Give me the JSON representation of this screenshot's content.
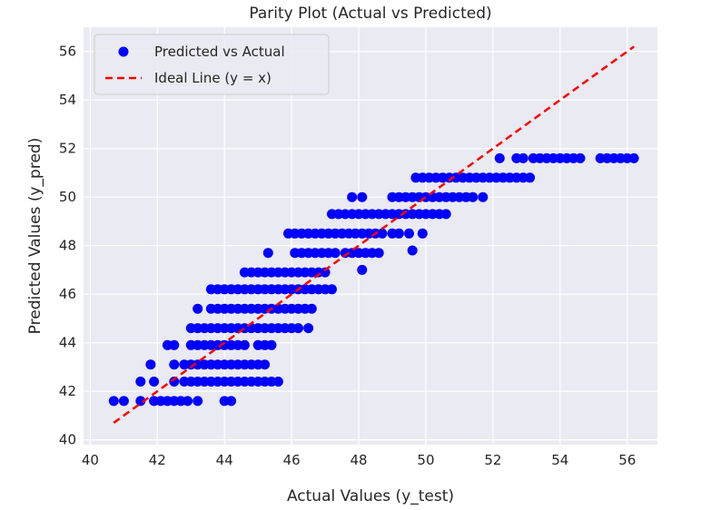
{
  "chart_data": {
    "type": "scatter",
    "title": "Parity Plot (Actual vs Predicted)",
    "xlabel": "Actual Values (y_test)",
    "ylabel": "Predicted Values (y_pred)",
    "xlim": [
      39.8,
      56.9
    ],
    "ylim": [
      39.8,
      57.0
    ],
    "xticks": [
      40,
      42,
      44,
      46,
      48,
      50,
      52,
      54,
      56
    ],
    "yticks": [
      40,
      42,
      44,
      46,
      48,
      50,
      52,
      54,
      56
    ],
    "grid": true,
    "legend": {
      "position": "top-left",
      "entries": [
        {
          "label": "Predicted vs Actual",
          "marker": "circle",
          "color": "#0000ff"
        },
        {
          "label": "Ideal Line (y = x)",
          "marker": "dashed-line",
          "color": "#ff0000"
        }
      ]
    },
    "colors": {
      "background": "#eaeaf2",
      "grid": "#ffffff",
      "points": "#0000ff",
      "ideal_line": "#ff0000"
    },
    "ideal_line": {
      "x": [
        40.7,
        56.2
      ],
      "y": [
        40.7,
        56.2
      ]
    },
    "series": [
      {
        "name": "Predicted vs Actual",
        "rows": [
          {
            "y": 41.6,
            "x": [
              40.7,
              41.0,
              41.5,
              41.9,
              42.1,
              42.3,
              42.5,
              42.7,
              42.9,
              43.2,
              44.0,
              44.2
            ]
          },
          {
            "y": 42.4,
            "x": [
              41.5,
              41.9,
              42.5,
              42.8,
              43.0,
              43.2,
              43.4,
              43.6,
              43.8,
              44.0,
              44.2,
              44.4,
              44.6,
              44.8,
              45.0,
              45.2,
              45.4,
              45.6
            ]
          },
          {
            "y": 43.1,
            "x": [
              41.8,
              42.5,
              42.8,
              43.0,
              43.2,
              43.4,
              43.6,
              43.8,
              44.0,
              44.2,
              44.4,
              44.6,
              44.8,
              45.0,
              45.2
            ]
          },
          {
            "y": 43.9,
            "x": [
              42.3,
              42.5,
              43.0,
              43.2,
              43.4,
              43.6,
              43.8,
              44.0,
              44.2,
              44.4,
              44.6,
              45.0,
              45.2,
              45.4
            ]
          },
          {
            "y": 44.6,
            "x": [
              43.0,
              43.2,
              43.4,
              43.6,
              43.8,
              44.0,
              44.2,
              44.4,
              44.6,
              44.8,
              45.0,
              45.2,
              45.4,
              45.6,
              45.8,
              46.0,
              46.2,
              46.5
            ]
          },
          {
            "y": 45.4,
            "x": [
              43.2,
              43.6,
              43.8,
              44.0,
              44.2,
              44.4,
              44.6,
              44.8,
              45.0,
              45.2,
              45.4,
              45.6,
              45.8,
              46.0,
              46.2,
              46.4,
              46.6
            ]
          },
          {
            "y": 46.2,
            "x": [
              43.6,
              43.8,
              44.0,
              44.2,
              44.4,
              44.6,
              44.8,
              45.0,
              45.2,
              45.4,
              45.6,
              45.8,
              46.0,
              46.2,
              46.4,
              46.6,
              46.8,
              47.0,
              47.2
            ]
          },
          {
            "y": 46.9,
            "x": [
              44.6,
              44.8,
              45.0,
              45.2,
              45.4,
              45.6,
              45.8,
              46.0,
              46.2,
              46.4,
              46.6,
              46.8,
              47.0
            ]
          },
          {
            "y": 47.7,
            "x": [
              45.3,
              46.1,
              46.3,
              46.5,
              46.7,
              46.9,
              47.1,
              47.3,
              47.6,
              47.8,
              48.0,
              48.2,
              48.4,
              48.6
            ]
          },
          {
            "y": 47.0,
            "x": [
              48.1
            ]
          },
          {
            "y": 47.8,
            "x": [
              49.6
            ]
          },
          {
            "y": 48.5,
            "x": [
              45.9,
              46.1,
              46.3,
              46.5,
              46.7,
              46.9,
              47.1,
              47.3,
              47.5,
              47.7,
              47.9,
              48.1,
              48.3,
              48.5,
              48.7,
              49.0,
              49.2,
              49.5,
              49.9
            ]
          },
          {
            "y": 49.3,
            "x": [
              47.2,
              47.4,
              47.6,
              47.8,
              48.0,
              48.2,
              48.4,
              48.6,
              48.8,
              49.0,
              49.2,
              49.4,
              49.6,
              49.8,
              50.0,
              50.2,
              50.4,
              50.6
            ]
          },
          {
            "y": 50.0,
            "x": [
              47.8,
              48.1,
              49.0,
              49.2,
              49.4,
              49.6,
              49.8,
              50.0,
              50.2,
              50.4,
              50.6,
              50.8,
              51.0,
              51.2,
              51.4,
              51.7
            ]
          },
          {
            "y": 50.8,
            "x": [
              49.7,
              49.9,
              50.1,
              50.3,
              50.5,
              50.7,
              50.9,
              51.1,
              51.3,
              51.5,
              51.7,
              51.9,
              52.1,
              52.3,
              52.5,
              52.7,
              52.9,
              53.1
            ]
          },
          {
            "y": 51.6,
            "x": [
              52.2,
              52.7,
              52.9,
              53.2,
              53.4,
              53.6,
              53.8,
              54.0,
              54.2,
              54.4,
              54.6,
              55.2,
              55.4,
              55.6,
              55.8,
              56.0,
              56.2
            ]
          }
        ]
      }
    ]
  }
}
